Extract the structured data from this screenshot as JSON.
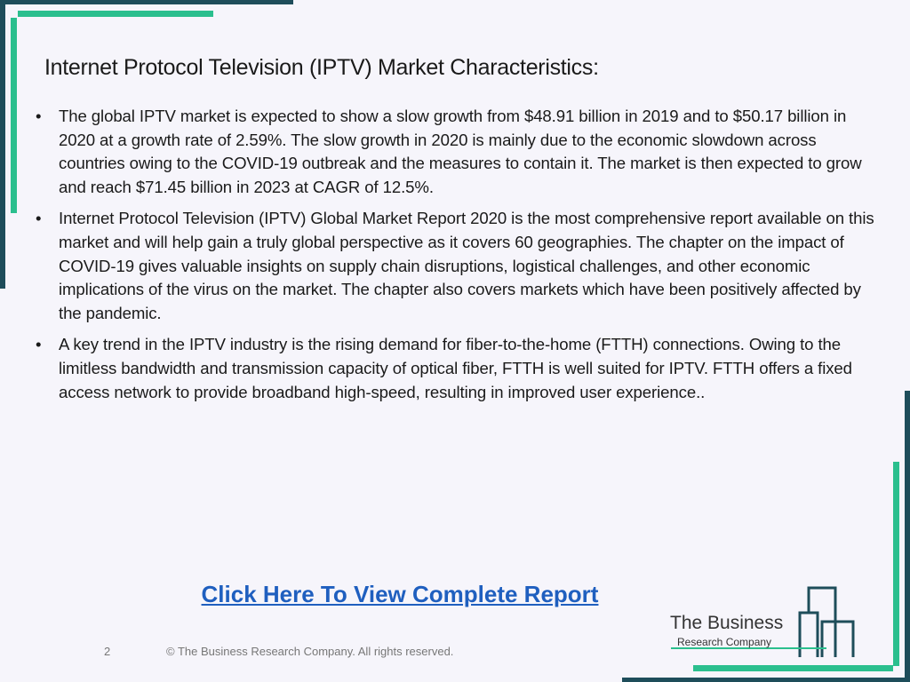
{
  "header": {
    "title": "Internet Protocol Television (IPTV) Market Characteristics:"
  },
  "bullets": [
    "The global IPTV market is expected to show a slow growth from $48.91 billion in 2019 and to $50.17 billion in 2020 at a growth rate of 2.59%. The slow growth in 2020 is mainly due to the economic slowdown across countries owing to the COVID-19 outbreak and the measures to contain it. The market is then expected to grow and reach $71.45 billion in 2023 at CAGR of 12.5%.",
    "Internet Protocol Television (IPTV) Global Market Report 2020 is the most comprehensive report available on this market and will help gain a truly global perspective as it covers 60 geographies. The chapter on the impact of COVID-19 gives valuable insights on supply chain disruptions, logistical challenges, and other economic implications of the virus on the market. The chapter also covers markets which have been positively affected by the pandemic.",
    "A key trend in the IPTV industry is the rising demand for fiber-to-the-home (FTTH) connections. Owing to the limitless bandwidth and transmission capacity of optical fiber, FTTH is well suited for IPTV. FTTH offers a fixed access network to provide broadband high-speed, resulting in improved user experience.."
  ],
  "link": {
    "text": "Click Here To View Complete Report"
  },
  "footer": {
    "page_number": "2",
    "copyright": "© The Business Research Company. All rights reserved."
  },
  "logo": {
    "line1": "The Business",
    "line2": "Research Company"
  }
}
